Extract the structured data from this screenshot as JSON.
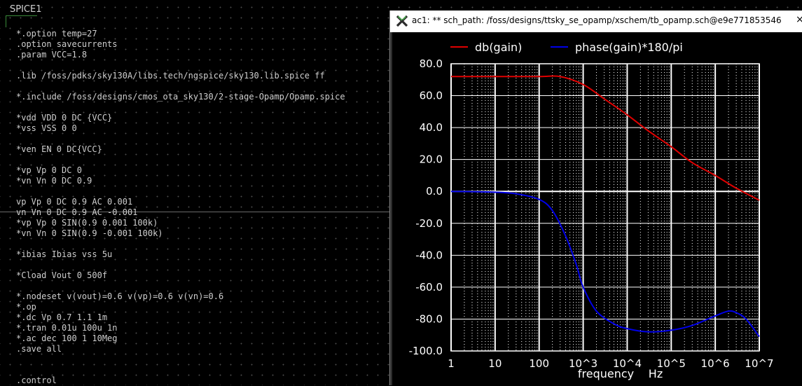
{
  "schematic": {
    "spice_block_label": "SPICE1",
    "code_lines": [
      "*.option temp=27",
      ".option savecurrents",
      ".param VCC=1.8",
      "",
      ".lib /foss/pdks/sky130A/libs.tech/ngspice/sky130.lib.spice ff",
      "",
      "*.include /foss/designs/cmos_ota_sky130/2-stage-Opamp/Opamp.spice",
      "",
      "*vdd VDD 0 DC {VCC}",
      "*vss VSS 0 0",
      "",
      "*ven EN 0 DC{VCC}",
      "",
      "*vp Vp 0 DC 0",
      "*vn Vn 0 DC 0.9",
      "",
      "vp Vp 0 DC 0.9 AC 0.001",
      "vn Vn 0 DC 0.9 AC -0.001",
      "*vp Vp 0 SIN(0.9 0.001 100k)",
      "*vn Vn 0 SIN(0.9 -0.001 100k)",
      "",
      "*ibias Ibias vss 5u",
      "",
      "*Cload Vout 0 500f",
      "",
      "*.nodeset v(vout)=0.6 v(vp)=0.6 v(vn)=0.6",
      "*.op",
      "*.dc Vp 0.7 1.1 1m",
      "*.tran 0.01u 100u 1n",
      "*.ac dec 100 1 10Meg",
      ".save all",
      "",
      "",
      ".control"
    ]
  },
  "wave_window": {
    "title": "ac1: ** sch_path: /foss/designs/ttsky_se_opamp/xschem/tb_opamp.sch@e9e771853546",
    "close_glyph": "×",
    "logo_icon": "x11-logo-icon"
  },
  "chart_data": {
    "type": "line",
    "title": "",
    "xlabel": "frequency",
    "xunit": "Hz",
    "ylabel": "",
    "xscale": "log",
    "xlim": [
      1,
      10000000
    ],
    "ylim": [
      -100,
      80
    ],
    "grid": true,
    "legend_position": "top",
    "x_tick_labels": [
      "1",
      "10",
      "100",
      "10^3",
      "10^4",
      "10^5",
      "10^6",
      "10^7"
    ],
    "y_tick_labels": [
      "80.0",
      "60.0",
      "40.0",
      "20.0",
      "0.0",
      "-20.0",
      "-40.0",
      "-60.0",
      "-80.0",
      "-100.0"
    ],
    "colors": {
      "background": "#000000",
      "grid": "#ffffff",
      "text": "#ffffff"
    },
    "series": [
      {
        "name": "db(gain)",
        "color": "#e00000",
        "x": [
          1,
          10,
          100,
          300,
          1000,
          3000,
          10000,
          30000,
          100000,
          300000,
          1000000,
          3000000,
          10000000
        ],
        "values": [
          72,
          72,
          72,
          72,
          67,
          58,
          48,
          38,
          28,
          18,
          10,
          2,
          -5.5
        ]
      },
      {
        "name": "phase(gain)*180/pi",
        "color": "#0000e8",
        "x": [
          1,
          10,
          30,
          100,
          200,
          400,
          700,
          1000,
          2000,
          5000,
          10000,
          30000,
          100000,
          300000,
          1000000,
          2000000,
          3000000,
          5000000,
          10000000
        ],
        "values": [
          0,
          -0.5,
          -1.5,
          -5,
          -12,
          -28,
          -46,
          -60,
          -75,
          -83,
          -86,
          -88,
          -87,
          -84,
          -78,
          -75,
          -76,
          -80,
          -91
        ]
      }
    ]
  }
}
